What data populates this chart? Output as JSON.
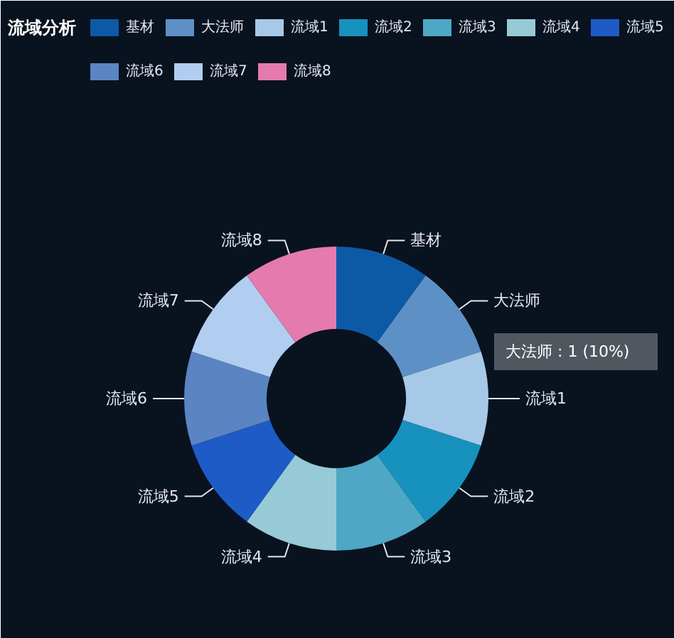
{
  "chart_data": {
    "type": "donut",
    "title": "流域分析",
    "categories": [
      "基材",
      "大法师",
      "流域1",
      "流域2",
      "流域3",
      "流域4",
      "流域5",
      "流域6",
      "流域7",
      "流域8"
    ],
    "values": [
      1,
      1,
      1,
      1,
      1,
      1,
      1,
      1,
      1,
      1
    ],
    "colors": [
      "#0c5aa6",
      "#5d91c6",
      "#a6c9e8",
      "#1791be",
      "#4ea7c4",
      "#97cad7",
      "#1e5bc7",
      "#5b84c3",
      "#b1cdf0",
      "#e47aae"
    ],
    "legend": "top",
    "annotations": [
      "大法师 : 1 (10%)"
    ]
  }
}
